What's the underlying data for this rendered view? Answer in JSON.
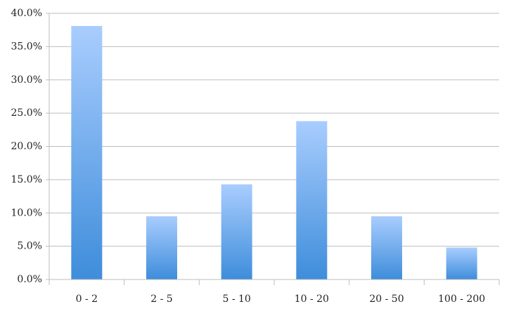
{
  "chart_data": {
    "type": "bar",
    "categories": [
      "0 - 2",
      "2 - 5",
      "5 - 10",
      "10 - 20",
      "20 - 50",
      "100 - 200"
    ],
    "values": [
      38.1,
      9.5,
      14.3,
      23.8,
      9.5,
      4.8
    ],
    "gradient": {
      "top": "#a9cdfe",
      "bottom": "#3e8ddb"
    },
    "ylim": [
      0,
      40
    ],
    "yticks": [
      {
        "value": 0,
        "label": "0.0%"
      },
      {
        "value": 5,
        "label": "5.0%"
      },
      {
        "value": 10,
        "label": "10.0%"
      },
      {
        "value": 15,
        "label": "15.0%"
      },
      {
        "value": 20,
        "label": "20.0%"
      },
      {
        "value": 25,
        "label": "25.0%"
      },
      {
        "value": 30,
        "label": "30.0%"
      },
      {
        "value": 35,
        "label": "35.0%"
      },
      {
        "value": 40,
        "label": "40.0%"
      }
    ],
    "grid": true
  }
}
